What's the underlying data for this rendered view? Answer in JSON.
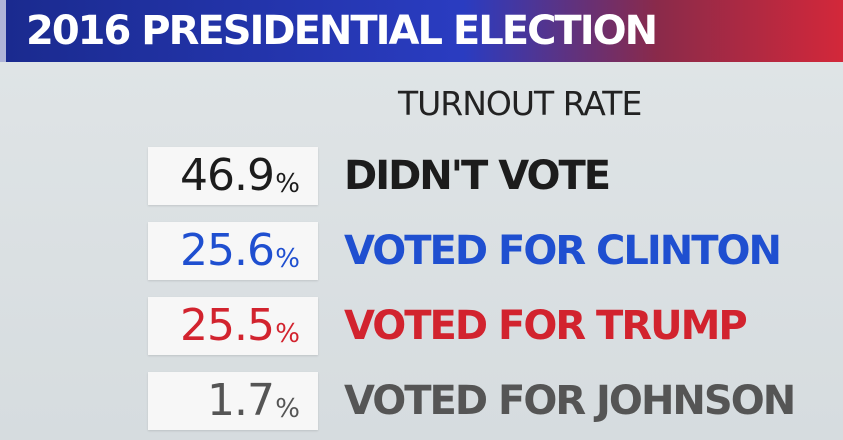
{
  "banner": {
    "title": "2016 PRESIDENTIAL ELECTION"
  },
  "subtitle": "TURNOUT RATE",
  "rows": [
    {
      "value": "46.9",
      "unit": "%",
      "label": "DIDN'T VOTE",
      "color": "#1c1c1c"
    },
    {
      "value": "25.6",
      "unit": "%",
      "label": "VOTED FOR CLINTON",
      "color": "#1f4fd0"
    },
    {
      "value": "25.5",
      "unit": "%",
      "label": "VOTED FOR TRUMP",
      "color": "#d2232e"
    },
    {
      "value": "1.7",
      "unit": "%",
      "label": "VOTED FOR JOHNSON",
      "color": "#555555"
    }
  ]
}
